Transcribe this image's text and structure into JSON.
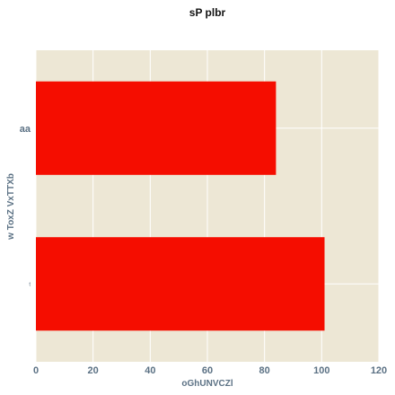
{
  "chart_data": {
    "type": "bar",
    "orientation": "horizontal",
    "title": "sP plbr",
    "xlabel": "oGhUNVCZl",
    "ylabel": "w ToxZ VxTTXb",
    "categories": [
      "aa",
      "t"
    ],
    "values": [
      84,
      101
    ],
    "xlim": [
      0,
      120
    ],
    "xticks": [
      0,
      20,
      40,
      60,
      80,
      100,
      120
    ],
    "grid": true,
    "legend": "none",
    "colors": {
      "bar": "#f50d00",
      "plot_background": "#ede7d5",
      "grid": "#ffffff",
      "axis_text": "#5b7184",
      "title": "#111111"
    }
  }
}
